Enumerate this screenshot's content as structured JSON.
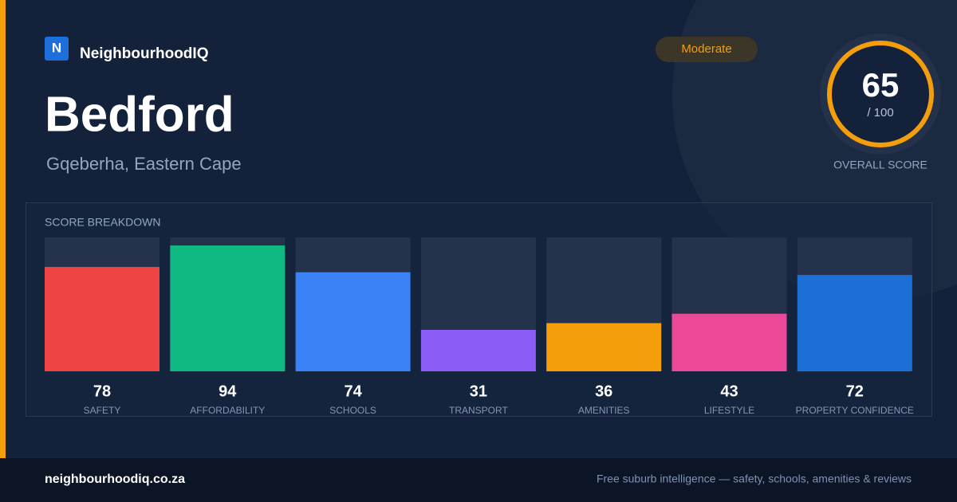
{
  "brand": "NeighbourhoodIQ",
  "logo": "N",
  "title": "Bedford",
  "subtitle": "Gqeberha, Eastern Cape",
  "badge": "Moderate",
  "score": {
    "value": 65,
    "max_label": "/ 100",
    "caption": "OVERALL SCORE"
  },
  "chart_data": {
    "type": "bar",
    "title": "SCORE BREAKDOWN",
    "categories": [
      "SAFETY",
      "AFFORDABILITY",
      "SCHOOLS",
      "TRANSPORT",
      "AMENITIES",
      "LIFESTYLE",
      "PROPERTY CONFIDENCE"
    ],
    "values": [
      78,
      94,
      74,
      31,
      36,
      43,
      72
    ],
    "colors": [
      "#ef4444",
      "#10b981",
      "#3b82f6",
      "#8b5cf6",
      "#f59e0b",
      "#ec4899",
      "#1d6fd8"
    ],
    "ylim": [
      0,
      100
    ]
  },
  "footer": {
    "url": "neighbourhoodiq.co.za",
    "tagline": "Free suburb intelligence — safety, schools, amenities & reviews"
  }
}
